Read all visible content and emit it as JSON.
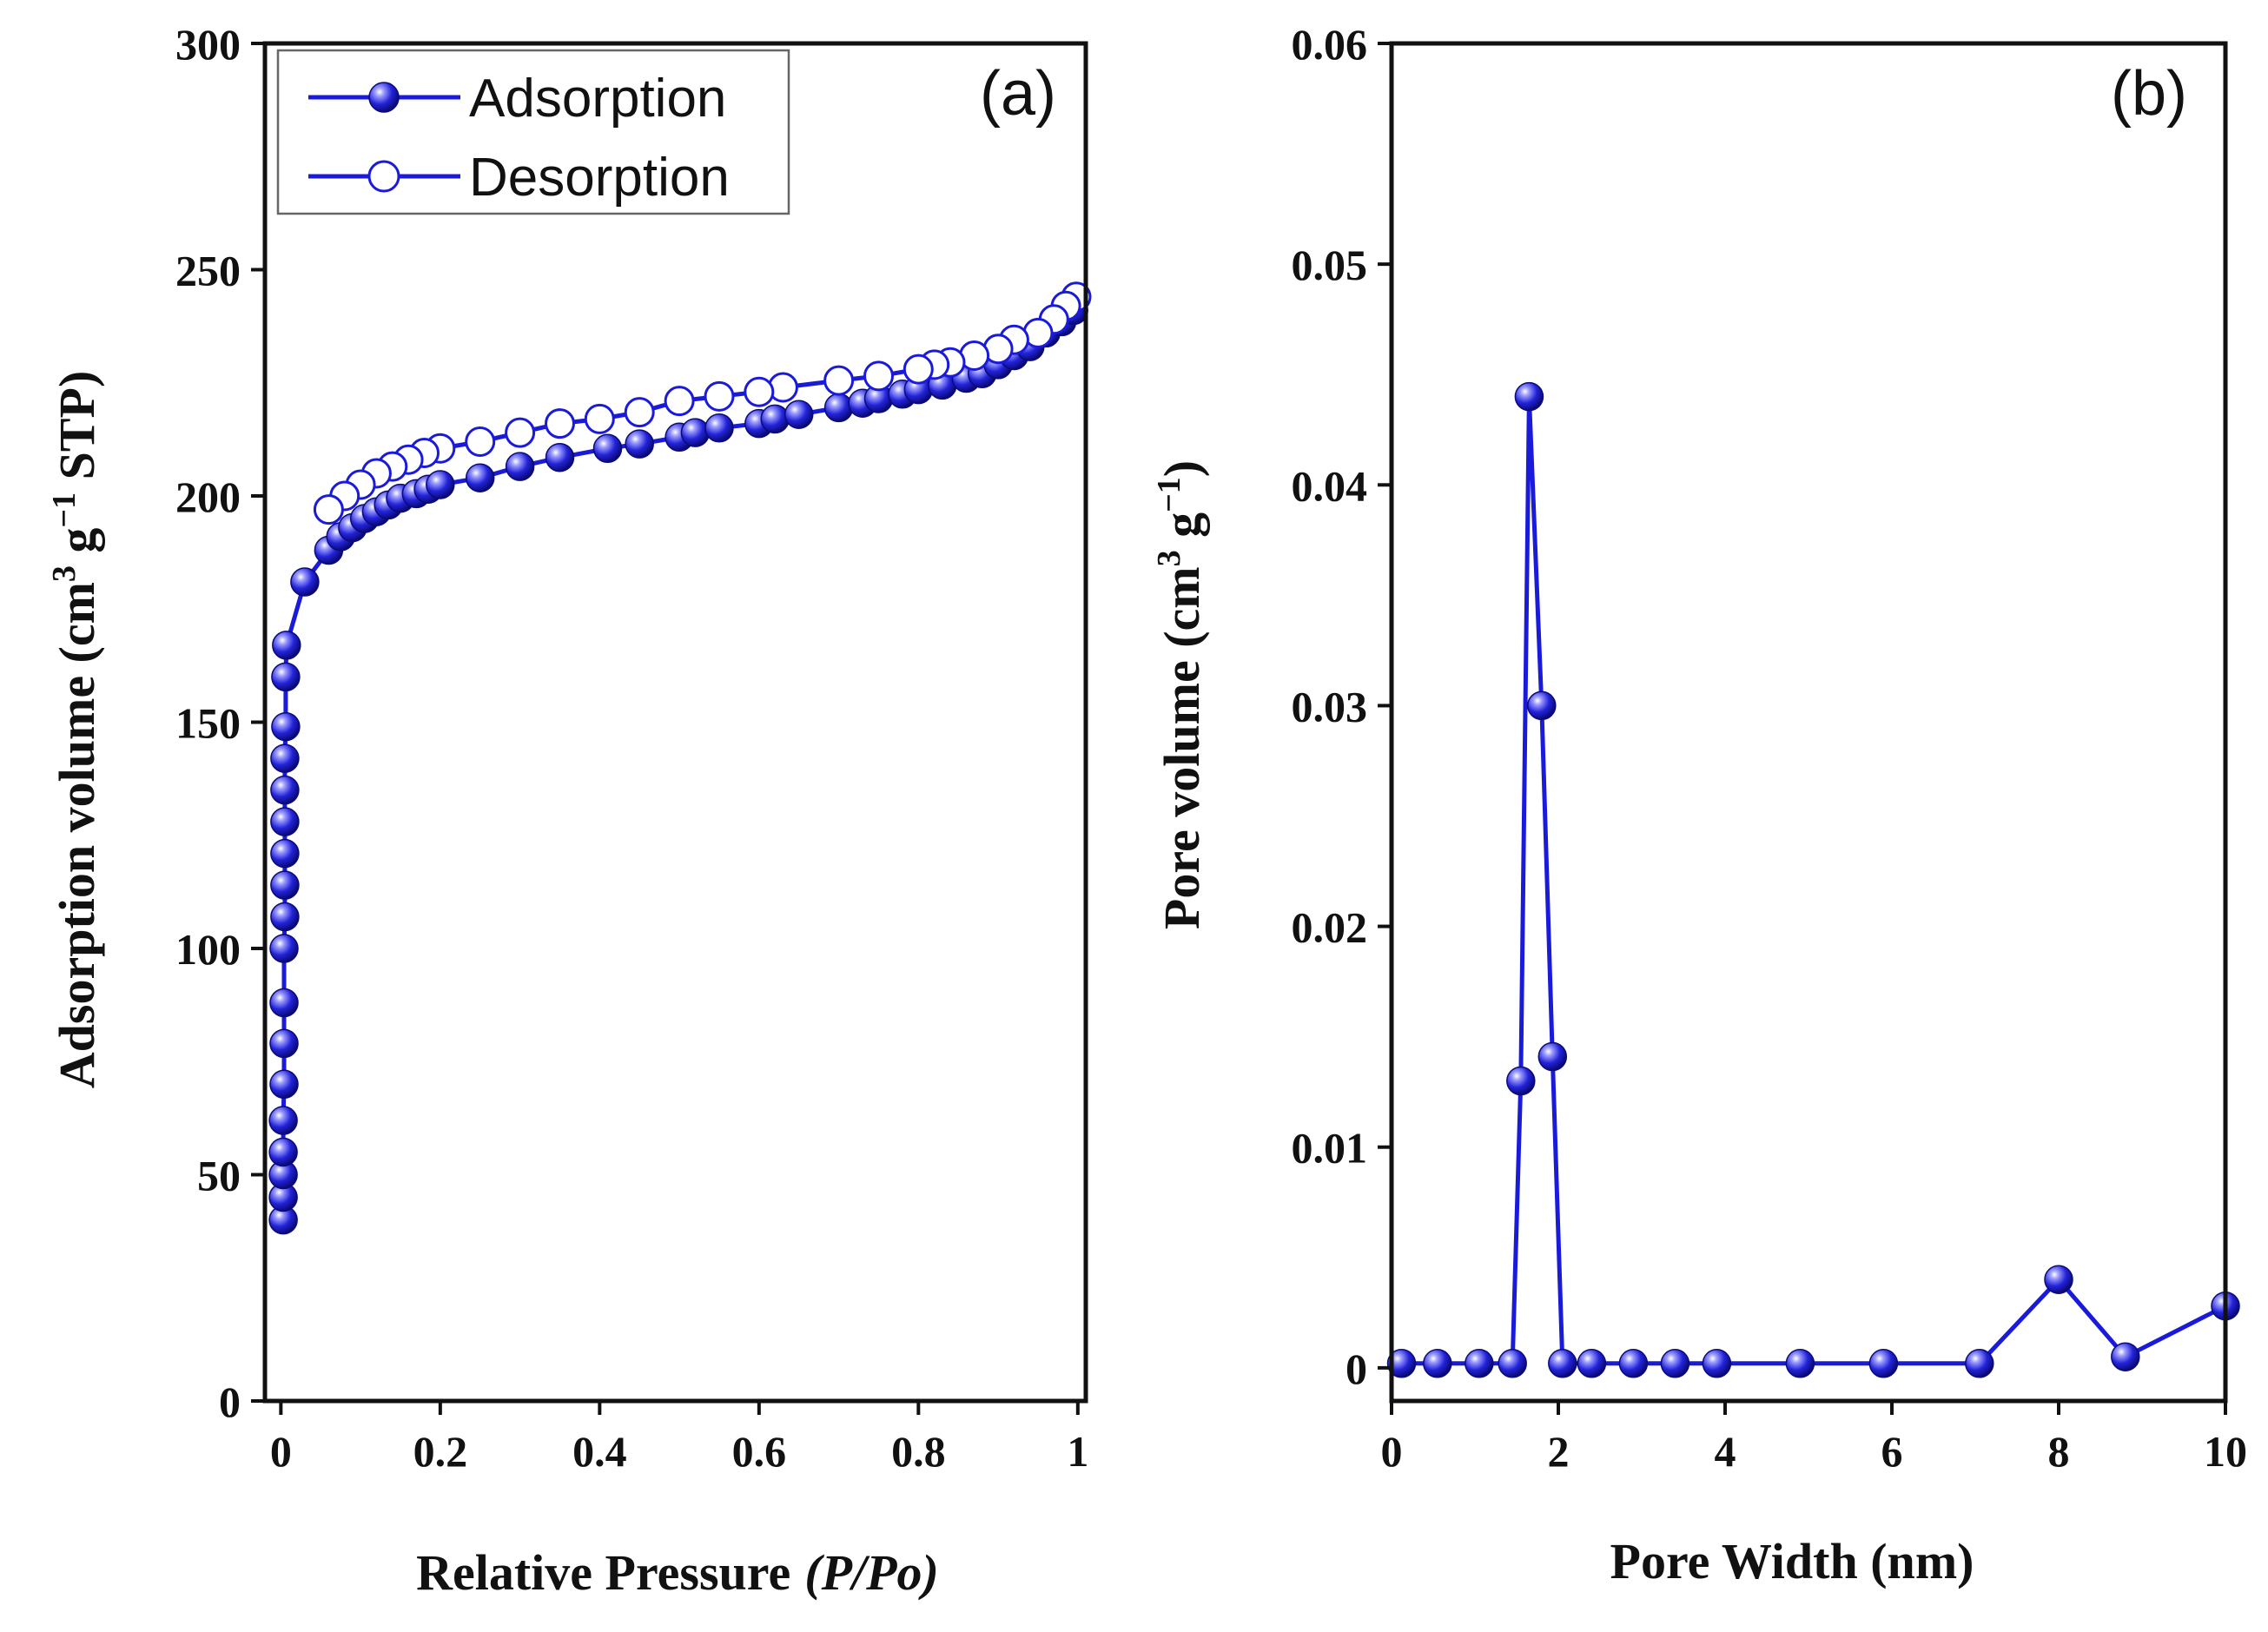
{
  "chart_data": [
    {
      "type": "line",
      "panel_label": "(a)",
      "xlabel": "Relative Pressure",
      "xlabel_italic": "(P/Po)",
      "ylabel": "Adsorption volume (cm",
      "ylabel_sup1": "3",
      "ylabel_mid": " g",
      "ylabel_sup2": "−1",
      "ylabel_end": " STP)",
      "xlim": [
        -0.02,
        1.01
      ],
      "ylim": [
        0,
        300
      ],
      "xticks": [
        0,
        0.2,
        0.4,
        0.6,
        0.8,
        1
      ],
      "xtick_labels": [
        "0",
        "0.2",
        "0.4",
        "0.6",
        "0.8",
        "1"
      ],
      "yticks": [
        0,
        50,
        100,
        150,
        200,
        250,
        300
      ],
      "ytick_labels": [
        "0",
        "50",
        "100",
        "150",
        "200",
        "250",
        "300"
      ],
      "legend_position": "top-left",
      "series": [
        {
          "name": "Adsorption",
          "marker": "filled-circle",
          "color": "#1a1adb",
          "points": [
            [
              0.003,
              40
            ],
            [
              0.003,
              45
            ],
            [
              0.003,
              50
            ],
            [
              0.003,
              55
            ],
            [
              0.003,
              62
            ],
            [
              0.004,
              70
            ],
            [
              0.004,
              79
            ],
            [
              0.004,
              88
            ],
            [
              0.004,
              100
            ],
            [
              0.005,
              107
            ],
            [
              0.005,
              114
            ],
            [
              0.005,
              121
            ],
            [
              0.005,
              128
            ],
            [
              0.005,
              135
            ],
            [
              0.005,
              142
            ],
            [
              0.006,
              149
            ],
            [
              0.006,
              160
            ],
            [
              0.007,
              167
            ],
            [
              0.03,
              181
            ],
            [
              0.06,
              188
            ],
            [
              0.075,
              191
            ],
            [
              0.09,
              193
            ],
            [
              0.105,
              195
            ],
            [
              0.12,
              196.5
            ],
            [
              0.135,
              198
            ],
            [
              0.15,
              199.5
            ],
            [
              0.17,
              200.5
            ],
            [
              0.185,
              201.5
            ],
            [
              0.2,
              202.5
            ],
            [
              0.25,
              204
            ],
            [
              0.3,
              206.5
            ],
            [
              0.35,
              208.5
            ],
            [
              0.41,
              210.5
            ],
            [
              0.45,
              211.5
            ],
            [
              0.5,
              213
            ],
            [
              0.52,
              214
            ],
            [
              0.55,
              215
            ],
            [
              0.6,
              216
            ],
            [
              0.62,
              217
            ],
            [
              0.65,
              218
            ],
            [
              0.7,
              219.5
            ],
            [
              0.73,
              220.5
            ],
            [
              0.75,
              221.5
            ],
            [
              0.78,
              222.5
            ],
            [
              0.8,
              223.5
            ],
            [
              0.83,
              224.5
            ],
            [
              0.86,
              226
            ],
            [
              0.88,
              227
            ],
            [
              0.9,
              229
            ],
            [
              0.92,
              231
            ],
            [
              0.94,
              233
            ],
            [
              0.96,
              236
            ],
            [
              0.98,
              238.5
            ],
            [
              0.995,
              241
            ]
          ]
        },
        {
          "name": "Desorption",
          "marker": "open-circle",
          "color": "#1a1adb",
          "points": [
            [
              0.998,
              244
            ],
            [
              0.985,
              242
            ],
            [
              0.97,
              239
            ],
            [
              0.95,
              236
            ],
            [
              0.92,
              234.5
            ],
            [
              0.9,
              232.5
            ],
            [
              0.87,
              231
            ],
            [
              0.84,
              229.5
            ],
            [
              0.82,
              229
            ],
            [
              0.8,
              228
            ],
            [
              0.75,
              226.5
            ],
            [
              0.7,
              225.5
            ],
            [
              0.63,
              224
            ],
            [
              0.6,
              223
            ],
            [
              0.55,
              222
            ],
            [
              0.5,
              221
            ],
            [
              0.45,
              218.5
            ],
            [
              0.4,
              217
            ],
            [
              0.35,
              216
            ],
            [
              0.3,
              214
            ],
            [
              0.25,
              212
            ],
            [
              0.2,
              210.5
            ],
            [
              0.18,
              209.5
            ],
            [
              0.16,
              208
            ],
            [
              0.14,
              206.5
            ],
            [
              0.12,
              205
            ],
            [
              0.1,
              202.5
            ],
            [
              0.08,
              200
            ],
            [
              0.06,
              197
            ]
          ]
        }
      ]
    },
    {
      "type": "line",
      "panel_label": "(b)",
      "xlabel": "Pore Width (nm)",
      "ylabel": "Pore volume (cm",
      "ylabel_sup1": "3",
      "ylabel_mid": " g",
      "ylabel_sup2": "−1",
      "ylabel_end": ")",
      "xlim": [
        0,
        10
      ],
      "ylim": [
        -0.0015,
        0.06
      ],
      "xticks": [
        0,
        2,
        4,
        6,
        8,
        10
      ],
      "xtick_labels": [
        "0",
        "2",
        "4",
        "6",
        "8",
        "10"
      ],
      "yticks": [
        0,
        0.01,
        0.02,
        0.03,
        0.04,
        0.05,
        0.06
      ],
      "ytick_labels": [
        "0",
        "0.01",
        "0.02",
        "0.03",
        "0.04",
        "0.05",
        "0.06"
      ],
      "series": [
        {
          "name": "Pore volume",
          "marker": "filled-circle",
          "color": "#1a1adb",
          "points": [
            [
              0.12,
              0.0002
            ],
            [
              0.55,
              0.0002
            ],
            [
              1.05,
              0.0002
            ],
            [
              1.45,
              0.0002
            ],
            [
              1.55,
              0.013
            ],
            [
              1.65,
              0.044
            ],
            [
              1.8,
              0.03
            ],
            [
              1.93,
              0.0141
            ],
            [
              2.05,
              0.0002
            ],
            [
              2.4,
              0.0002
            ],
            [
              2.9,
              0.0002
            ],
            [
              3.4,
              0.0002
            ],
            [
              3.9,
              0.0002
            ],
            [
              4.9,
              0.0002
            ],
            [
              5.9,
              0.0002
            ],
            [
              7.05,
              0.0002
            ],
            [
              8.0,
              0.004
            ],
            [
              8.8,
              0.0005
            ],
            [
              10.0,
              0.0028
            ]
          ]
        }
      ]
    }
  ]
}
